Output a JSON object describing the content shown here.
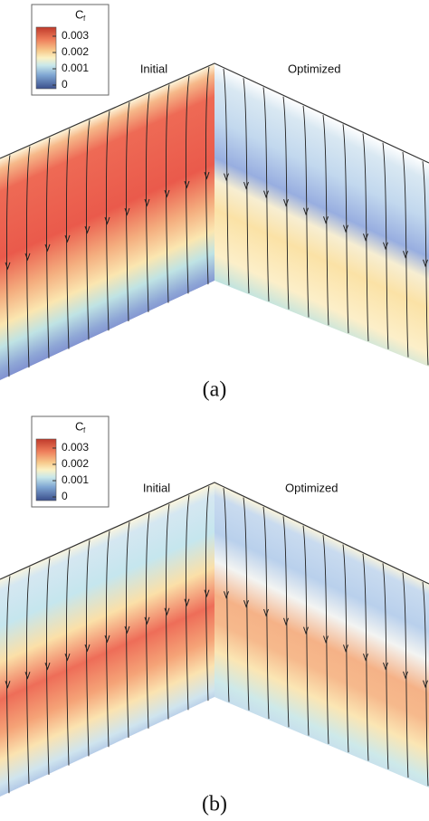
{
  "panels": [
    {
      "legend": {
        "title": "C",
        "title_sub": "f",
        "ticks": [
          "0.003",
          "0.002",
          "0.001",
          "0"
        ]
      },
      "labels": [
        "Initial",
        "Optimized"
      ],
      "caption": "(a)"
    },
    {
      "legend": {
        "title": "C",
        "title_sub": "f",
        "ticks": [
          "0.003",
          "0.002",
          "0.001",
          "0"
        ]
      },
      "labels": [
        "Initial",
        "Optimized"
      ],
      "caption": "(b)"
    }
  ]
}
